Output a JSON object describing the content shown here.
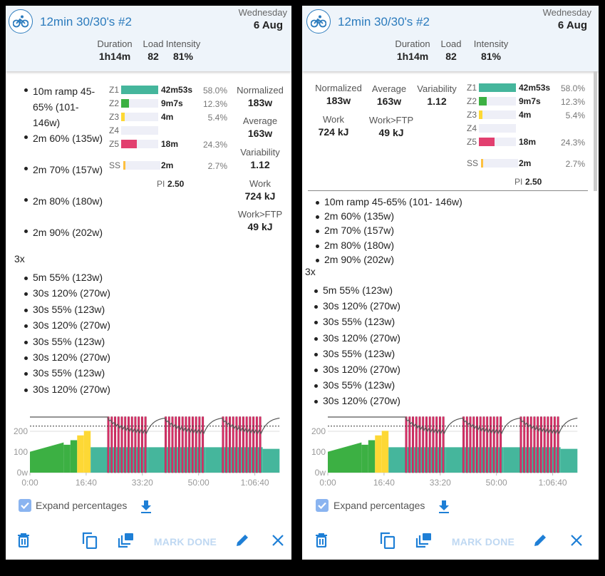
{
  "header": {
    "title": "12min 30/30's #2",
    "day_of_week": "Wednesday",
    "date": "6 Aug",
    "metrics": [
      {
        "label": "Duration",
        "value": "1h14m"
      },
      {
        "label": "Load",
        "value": "82"
      },
      {
        "label": "Intensity",
        "value": "81%"
      }
    ]
  },
  "stats": [
    {
      "label": "Normalized",
      "value": "183w"
    },
    {
      "label": "Average",
      "value": "163w"
    },
    {
      "label": "Variability",
      "value": "1.12"
    },
    {
      "label": "Work",
      "value": "724 kJ"
    },
    {
      "label": "Work>FTP",
      "value": "49 kJ"
    }
  ],
  "zones": [
    {
      "label": "Z1",
      "time": "42m53s",
      "pct": "58.0%",
      "fraction": 1.0,
      "color": "#45b69c"
    },
    {
      "label": "Z2",
      "time": "9m7s",
      "pct": "12.3%",
      "fraction": 0.21,
      "color": "#3cb043"
    },
    {
      "label": "Z3",
      "time": "4m",
      "pct": "5.4%",
      "fraction": 0.09,
      "color": "#fdd835"
    },
    {
      "label": "Z4",
      "time": "",
      "pct": "",
      "fraction": 0,
      "color": "#f0a030"
    },
    {
      "label": "Z5",
      "time": "18m",
      "pct": "24.3%",
      "fraction": 0.42,
      "color": "#e23f6f"
    },
    {
      "label": "SS",
      "time": "2m",
      "pct": "2.7%",
      "fraction": 0.05,
      "color": "#fdc040"
    }
  ],
  "pi": {
    "label": "PI",
    "value": "2.50"
  },
  "warmup": [
    "10m ramp 45-65% (101- 146w)",
    "2m 60% (135w)",
    "2m 70% (157w)",
    "2m 80% (180w)",
    "2m 90% (202w)"
  ],
  "repeat_label": "3x",
  "main_set": [
    "5m 55% (123w)",
    "30s 120% (270w)",
    "30s 55% (123w)",
    "30s 120% (270w)",
    "30s 55% (123w)",
    "30s 120% (270w)",
    "30s 55% (123w)",
    "30s 120% (270w)"
  ],
  "options": {
    "expand_label": "Expand percentages",
    "expand_checked": true
  },
  "actions": {
    "mark_done": "MARK DONE"
  },
  "chart_data": {
    "type": "area",
    "ylabel_ticks": [
      "0w",
      "100",
      "200"
    ],
    "y_ticks": [
      0,
      100,
      200
    ],
    "ylim": [
      0,
      270
    ],
    "x_ticks": [
      "0:00",
      "16:40",
      "33:20",
      "50:00",
      "1:06:40"
    ],
    "x_tick_seconds": [
      0,
      1000,
      2000,
      3000,
      4000
    ],
    "xlim_seconds": [
      0,
      4440
    ],
    "ftp_watts": 225,
    "zone_colors": {
      "z1": "#45b69c",
      "z2": "#3cb043",
      "z3": "#fdd835",
      "z5": "#e0306a"
    },
    "warmup_segments": [
      {
        "dur": 600,
        "from": 101,
        "to": 146,
        "zone": "z2"
      },
      {
        "dur": 120,
        "from": 135,
        "to": 135,
        "zone": "z2"
      },
      {
        "dur": 120,
        "from": 157,
        "to": 157,
        "zone": "z2"
      },
      {
        "dur": 120,
        "from": 180,
        "to": 180,
        "zone": "z3"
      },
      {
        "dur": 120,
        "from": 202,
        "to": 202,
        "zone": "z3"
      }
    ],
    "sets": {
      "repeat": 3,
      "rest": {
        "dur": 300,
        "watts": 123,
        "zone": "z1"
      },
      "reps": 12,
      "on": {
        "dur": 30,
        "watts": 270,
        "zone": "z5"
      },
      "off": {
        "dur": 30,
        "watts": 123,
        "zone": "z1"
      }
    },
    "cooldown": {
      "dur": 300,
      "watts": 115,
      "zone": "z1"
    }
  }
}
